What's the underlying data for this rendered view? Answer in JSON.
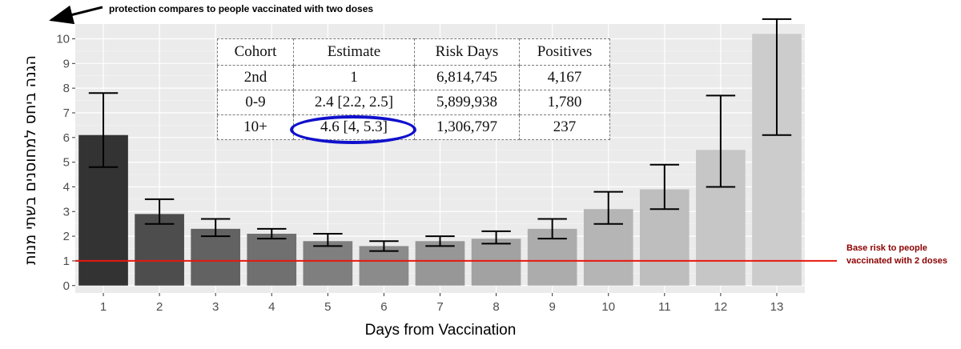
{
  "chart_data": {
    "type": "bar",
    "xlabel": "Days from Vaccination",
    "ylabel": "הגנה ביחס למחוסנים בשתי מנות",
    "categories": [
      "1",
      "2",
      "3",
      "4",
      "5",
      "6",
      "7",
      "8",
      "9",
      "10",
      "11",
      "12",
      "13"
    ],
    "values": [
      6.1,
      2.9,
      2.3,
      2.1,
      1.8,
      1.6,
      1.8,
      1.9,
      2.3,
      3.1,
      3.9,
      5.5,
      10.2
    ],
    "error_low": [
      4.8,
      2.5,
      2.0,
      1.9,
      1.6,
      1.4,
      1.6,
      1.7,
      1.9,
      2.5,
      3.1,
      4.0,
      6.1
    ],
    "error_high": [
      7.8,
      3.5,
      2.7,
      2.3,
      2.1,
      1.8,
      2.0,
      2.2,
      2.7,
      3.8,
      4.9,
      7.7,
      10.8
    ],
    "bar_colors": [
      "#333333",
      "#4d4d4d",
      "#626262",
      "#707070",
      "#7f7f7f",
      "#8b8b8b",
      "#979797",
      "#a2a2a2",
      "#acacac",
      "#b5b5b5",
      "#bebebe",
      "#c6c6c6",
      "#cccccc"
    ],
    "ylim": [
      -0.3,
      10.6
    ],
    "yticks": [
      0,
      1,
      2,
      3,
      4,
      5,
      6,
      7,
      8,
      9,
      10
    ],
    "reference_line": {
      "y": 1,
      "color": "#e8170f"
    },
    "grid": true,
    "background": "#ebebeb"
  },
  "annotations": {
    "top_note": "protection compares to people vaccinated with two doses",
    "side_note": "Base risk to people vaccinated with 2 doses"
  },
  "table": {
    "headers": [
      "Cohort",
      "Estimate",
      "Risk Days",
      "Positives"
    ],
    "rows": [
      [
        "2nd",
        "1",
        "6,814,745",
        "4,167"
      ],
      [
        "0-9",
        "2.4 [2.2, 2.5]",
        "5,899,938",
        "1,780"
      ],
      [
        "10+",
        "4.6 [4, 5.3]",
        "1,306,797",
        "237"
      ]
    ]
  }
}
